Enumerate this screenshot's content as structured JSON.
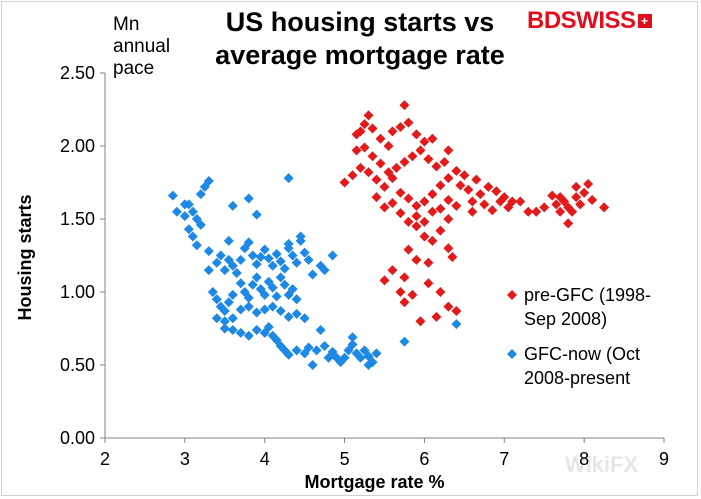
{
  "brand": {
    "logo_text": "BDSWISS",
    "logo_mark": "+",
    "watermark": "WikiFX",
    "accent_color": "#e10e1e"
  },
  "chart_data": {
    "type": "scatter",
    "title_lines": [
      "US housing starts vs",
      "average mortgage rate"
    ],
    "unit_lines": [
      "Mn",
      "annual",
      "pace"
    ],
    "xlabel": "Mortgage rate %",
    "ylabel": "Housing starts",
    "xlim": [
      2,
      9
    ],
    "ylim": [
      0,
      2.5
    ],
    "x_ticks": [
      "2",
      "3",
      "4",
      "5",
      "6",
      "7",
      "8",
      "9"
    ],
    "y_ticks": [
      "0.00",
      "0.50",
      "1.00",
      "1.50",
      "2.00",
      "2.50"
    ],
    "legend": [
      {
        "name_lines": [
          "pre-GFC (1998-",
          "Sep 2008)"
        ],
        "color": "#e31a1c"
      },
      {
        "name_lines": [
          "GFC-now (Oct",
          "2008-present"
        ],
        "color": "#1e88e5"
      }
    ],
    "series": [
      {
        "name": "pre-GFC (1998-Sep 2008)",
        "color": "#e31a1c",
        "points": [
          [
            5.0,
            1.75
          ],
          [
            5.1,
            1.8
          ],
          [
            5.2,
            1.85
          ],
          [
            5.15,
            1.97
          ],
          [
            5.25,
            1.99
          ],
          [
            5.35,
            1.93
          ],
          [
            5.45,
            1.88
          ],
          [
            5.55,
            1.82
          ],
          [
            5.65,
            1.85
          ],
          [
            5.75,
            1.89
          ],
          [
            5.85,
            1.93
          ],
          [
            5.95,
            1.97
          ],
          [
            6.05,
            1.91
          ],
          [
            6.15,
            1.86
          ],
          [
            5.3,
            2.21
          ],
          [
            5.25,
            2.15
          ],
          [
            5.2,
            2.1
          ],
          [
            5.15,
            2.08
          ],
          [
            5.35,
            2.12
          ],
          [
            5.45,
            2.05
          ],
          [
            5.55,
            2.0
          ],
          [
            5.6,
            2.1
          ],
          [
            5.7,
            2.13
          ],
          [
            5.75,
            2.28
          ],
          [
            5.8,
            2.16
          ],
          [
            5.9,
            2.08
          ],
          [
            6.0,
            2.03
          ],
          [
            6.1,
            2.05
          ],
          [
            6.3,
            1.97
          ],
          [
            6.25,
            1.89
          ],
          [
            5.3,
            1.82
          ],
          [
            5.4,
            1.77
          ],
          [
            5.5,
            1.72
          ],
          [
            5.6,
            1.78
          ],
          [
            5.7,
            1.68
          ],
          [
            5.8,
            1.64
          ],
          [
            5.9,
            1.59
          ],
          [
            6.0,
            1.62
          ],
          [
            6.1,
            1.67
          ],
          [
            6.2,
            1.73
          ],
          [
            6.3,
            1.78
          ],
          [
            6.4,
            1.83
          ],
          [
            5.4,
            1.65
          ],
          [
            5.5,
            1.58
          ],
          [
            5.6,
            1.61
          ],
          [
            5.7,
            1.54
          ],
          [
            5.8,
            1.48
          ],
          [
            5.9,
            1.52
          ],
          [
            6.0,
            1.48
          ],
          [
            6.1,
            1.55
          ],
          [
            6.2,
            1.57
          ],
          [
            6.3,
            1.5
          ],
          [
            6.5,
            1.8
          ],
          [
            6.45,
            1.73
          ],
          [
            6.55,
            1.7
          ],
          [
            6.6,
            1.62
          ],
          [
            6.7,
            1.67
          ],
          [
            6.8,
            1.72
          ],
          [
            6.9,
            1.69
          ],
          [
            7.0,
            1.65
          ],
          [
            6.75,
            1.6
          ],
          [
            6.85,
            1.56
          ],
          [
            6.95,
            1.62
          ],
          [
            7.05,
            1.58
          ],
          [
            7.1,
            1.62
          ],
          [
            6.65,
            1.77
          ],
          [
            6.6,
            1.55
          ],
          [
            6.4,
            1.59
          ],
          [
            6.3,
            1.63
          ],
          [
            7.2,
            1.62
          ],
          [
            7.3,
            1.55
          ],
          [
            7.4,
            1.55
          ],
          [
            7.5,
            1.58
          ],
          [
            7.6,
            1.66
          ],
          [
            7.65,
            1.6
          ],
          [
            7.7,
            1.55
          ],
          [
            7.75,
            1.62
          ],
          [
            7.8,
            1.58
          ],
          [
            7.85,
            1.55
          ],
          [
            7.9,
            1.65
          ],
          [
            7.95,
            1.6
          ],
          [
            8.0,
            1.68
          ],
          [
            8.1,
            1.63
          ],
          [
            8.05,
            1.74
          ],
          [
            7.9,
            1.72
          ],
          [
            7.8,
            1.47
          ],
          [
            7.7,
            1.65
          ],
          [
            8.25,
            1.58
          ],
          [
            6.2,
            1.42
          ],
          [
            6.1,
            1.35
          ],
          [
            6.0,
            1.38
          ],
          [
            5.9,
            1.45
          ],
          [
            6.3,
            1.3
          ],
          [
            6.35,
            1.24
          ],
          [
            6.05,
            1.2
          ],
          [
            5.8,
            1.29
          ],
          [
            5.9,
            1.22
          ],
          [
            5.6,
            1.15
          ],
          [
            5.75,
            1.1
          ],
          [
            5.5,
            1.08
          ],
          [
            5.7,
            1.0
          ],
          [
            5.85,
            0.98
          ],
          [
            5.75,
            0.93
          ],
          [
            6.05,
            1.06
          ],
          [
            6.2,
            1.0
          ],
          [
            6.3,
            0.9
          ],
          [
            6.4,
            0.87
          ],
          [
            6.15,
            0.83
          ],
          [
            5.95,
            0.8
          ]
        ]
      },
      {
        "name": "GFC-now (Oct 2008-present)",
        "color": "#1e88e5",
        "points": [
          [
            2.85,
            1.66
          ],
          [
            2.9,
            1.55
          ],
          [
            3.0,
            1.52
          ],
          [
            3.05,
            1.6
          ],
          [
            3.1,
            1.55
          ],
          [
            3.15,
            1.5
          ],
          [
            3.2,
            1.46
          ],
          [
            3.1,
            1.38
          ],
          [
            3.15,
            1.32
          ],
          [
            3.2,
            1.67
          ],
          [
            3.25,
            1.72
          ],
          [
            3.3,
            1.76
          ],
          [
            3.05,
            1.43
          ],
          [
            3.0,
            1.6
          ],
          [
            3.6,
            1.59
          ],
          [
            3.8,
            1.64
          ],
          [
            3.9,
            1.53
          ],
          [
            4.3,
            1.78
          ],
          [
            3.3,
            1.28
          ],
          [
            3.45,
            1.25
          ],
          [
            3.55,
            1.22
          ],
          [
            3.6,
            1.18
          ],
          [
            3.5,
            1.15
          ],
          [
            3.65,
            1.13
          ],
          [
            3.7,
            1.22
          ],
          [
            3.75,
            1.3
          ],
          [
            3.8,
            1.34
          ],
          [
            3.85,
            1.25
          ],
          [
            3.9,
            1.19
          ],
          [
            3.95,
            1.24
          ],
          [
            4.0,
            1.29
          ],
          [
            4.05,
            1.23
          ],
          [
            4.1,
            1.18
          ],
          [
            4.15,
            1.26
          ],
          [
            4.2,
            1.21
          ],
          [
            4.25,
            1.16
          ],
          [
            4.3,
            1.3
          ],
          [
            4.35,
            1.25
          ],
          [
            4.4,
            1.2
          ],
          [
            4.45,
            1.35
          ],
          [
            4.5,
            1.27
          ],
          [
            4.55,
            1.22
          ],
          [
            4.6,
            1.12
          ],
          [
            4.7,
            1.18
          ],
          [
            4.75,
            1.15
          ],
          [
            3.7,
            1.06
          ],
          [
            3.75,
            1.0
          ],
          [
            3.8,
            0.96
          ],
          [
            3.85,
            1.05
          ],
          [
            3.9,
            1.1
          ],
          [
            3.95,
            1.02
          ],
          [
            4.0,
            0.98
          ],
          [
            4.05,
            1.07
          ],
          [
            4.1,
            1.03
          ],
          [
            4.15,
            0.97
          ],
          [
            4.2,
            1.1
          ],
          [
            4.25,
            1.05
          ],
          [
            4.3,
            0.98
          ],
          [
            4.35,
            1.02
          ],
          [
            4.4,
            0.95
          ],
          [
            3.35,
            1.0
          ],
          [
            3.4,
            0.95
          ],
          [
            3.45,
            0.9
          ],
          [
            3.5,
            0.87
          ],
          [
            3.55,
            0.93
          ],
          [
            3.6,
            0.98
          ],
          [
            3.4,
            0.82
          ],
          [
            3.5,
            0.8
          ],
          [
            3.6,
            0.82
          ],
          [
            3.7,
            0.88
          ],
          [
            3.8,
            0.9
          ],
          [
            3.9,
            0.86
          ],
          [
            4.0,
            0.88
          ],
          [
            4.1,
            0.9
          ],
          [
            4.2,
            0.87
          ],
          [
            4.3,
            0.83
          ],
          [
            4.4,
            0.85
          ],
          [
            4.5,
            0.82
          ],
          [
            3.5,
            0.75
          ],
          [
            3.6,
            0.74
          ],
          [
            3.7,
            0.72
          ],
          [
            3.8,
            0.7
          ],
          [
            3.9,
            0.74
          ],
          [
            4.0,
            0.72
          ],
          [
            4.1,
            0.7
          ],
          [
            4.15,
            0.67
          ],
          [
            4.2,
            0.63
          ],
          [
            4.25,
            0.6
          ],
          [
            4.3,
            0.57
          ],
          [
            4.4,
            0.6
          ],
          [
            4.5,
            0.58
          ],
          [
            4.55,
            0.62
          ],
          [
            4.65,
            0.6
          ],
          [
            4.75,
            0.63
          ],
          [
            4.85,
            0.59
          ],
          [
            4.9,
            0.55
          ],
          [
            4.95,
            0.52
          ],
          [
            5.0,
            0.55
          ],
          [
            5.05,
            0.6
          ],
          [
            5.1,
            0.64
          ],
          [
            5.15,
            0.58
          ],
          [
            5.2,
            0.55
          ],
          [
            5.25,
            0.6
          ],
          [
            5.3,
            0.56
          ],
          [
            5.35,
            0.52
          ],
          [
            5.3,
            0.5
          ],
          [
            5.4,
            0.58
          ],
          [
            5.1,
            0.69
          ],
          [
            4.8,
            0.55
          ],
          [
            4.6,
            0.5
          ],
          [
            4.05,
            0.76
          ],
          [
            4.7,
            0.74
          ],
          [
            6.4,
            0.78
          ],
          [
            5.75,
            0.66
          ],
          [
            3.55,
            1.35
          ],
          [
            3.4,
            1.2
          ],
          [
            3.3,
            1.15
          ],
          [
            4.45,
            1.38
          ],
          [
            4.3,
            1.33
          ],
          [
            4.85,
            1.25
          ]
        ]
      }
    ]
  }
}
